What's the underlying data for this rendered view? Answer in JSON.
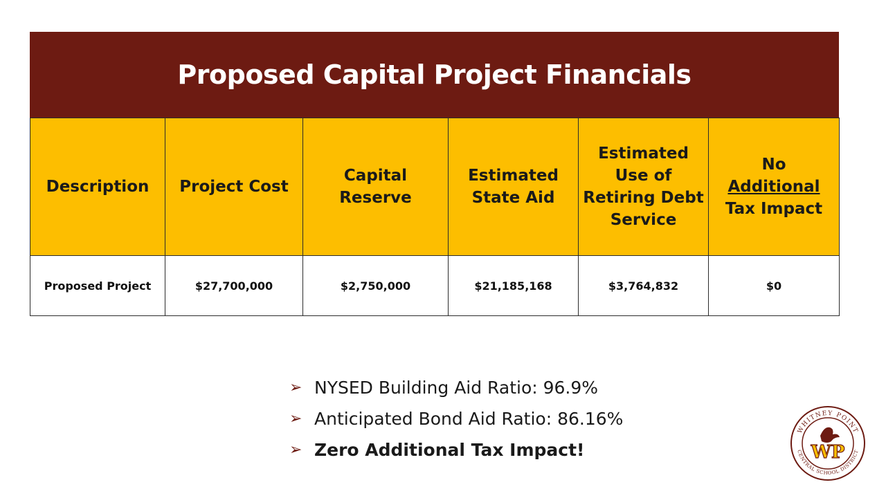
{
  "title": "Proposed Capital Project Financials",
  "table": {
    "headers": {
      "h0": "Description",
      "h1": "Project Cost",
      "h2a": "Capital",
      "h2b": "Reserve",
      "h3a": "Estimated",
      "h3b": "State Aid",
      "h4a": "Estimated",
      "h4b": "Use of",
      "h4c": "Retiring Debt",
      "h4d": "Service",
      "h5a": "No",
      "h5b": "Additional",
      "h5c": "Tax Impact"
    },
    "row": {
      "description": "Proposed Project",
      "project_cost": "$27,700,000",
      "capital_reserve": "$2,750,000",
      "state_aid": "$21,185,168",
      "retiring_debt": "$3,764,832",
      "tax_impact": "$0"
    }
  },
  "bullets": {
    "b1": "NYSED Building Aid Ratio: 96.9%",
    "b2": "Anticipated Bond Aid Ratio: 86.16%",
    "b3": "Zero Additional Tax Impact!"
  },
  "logo": {
    "top_text": "WHITNEY POINT",
    "bottom_text": "CENTRAL SCHOOL DISTRICT",
    "initials": "WP"
  },
  "colors": {
    "title_bar": "#6d1b12",
    "header_fill": "#fdbe00"
  }
}
